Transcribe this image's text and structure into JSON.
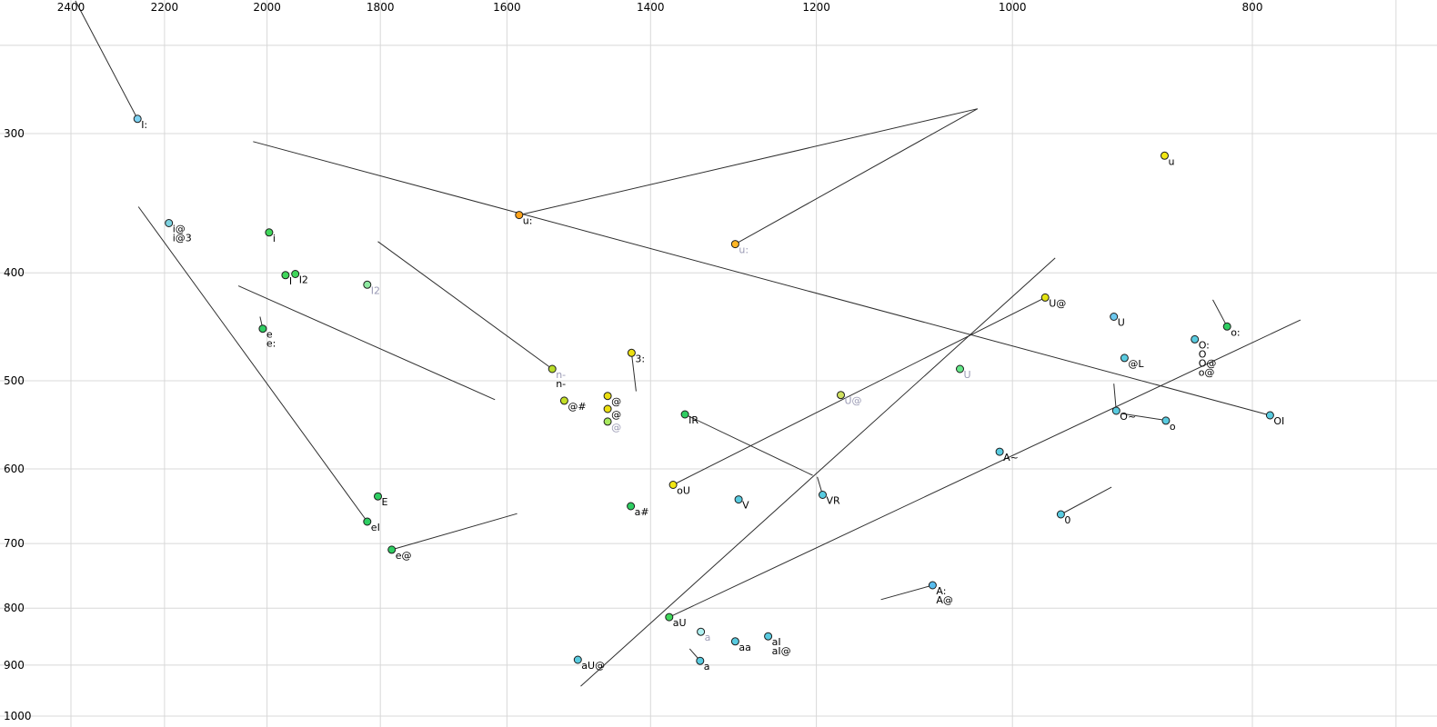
{
  "chart_data": {
    "type": "scatter",
    "title": "",
    "x_axis": {
      "scale": "log",
      "reversed": true,
      "ticks": [
        2400,
        2200,
        2000,
        1800,
        1600,
        1400,
        1200,
        1000,
        800
      ],
      "grid_extra": [
        700
      ],
      "range": [
        2560,
        680
      ]
    },
    "y_axis": {
      "scale": "log",
      "ticks": [
        300,
        400,
        500,
        600,
        700,
        800,
        900,
        1000
      ],
      "grid_extra": [
        250
      ],
      "range": [
        226,
        1015
      ]
    },
    "colors": {
      "grid": "#d8d8d8",
      "line": "#2e2e2e",
      "point_stroke": "#1c1c1c",
      "tick_label": "#000000",
      "muted_label": "#9a9ab4"
    },
    "points": [
      {
        "f2": 2256,
        "f1": 291,
        "fill": "#7ed2f2",
        "labels": [
          {
            "t": "I:"
          }
        ]
      },
      {
        "f2": 2191,
        "f1": 361,
        "fill": "#7ed2e0",
        "labels": [
          {
            "t": "i@"
          },
          {
            "t": "i@3"
          }
        ]
      },
      {
        "f2": 1996,
        "f1": 368,
        "fill": "#3fd65a",
        "labels": [
          {
            "t": "i"
          }
        ]
      },
      {
        "f2": 1966,
        "f1": 402,
        "fill": "#3fd65a",
        "labels": [
          {
            "t": "I"
          }
        ]
      },
      {
        "f2": 1948,
        "f1": 401,
        "fill": "#3fd65a",
        "labels": [
          {
            "t": "I2"
          }
        ]
      },
      {
        "f2": 1822,
        "f1": 410,
        "fill": "#8ee8a0",
        "labels": [
          {
            "t": "I2",
            "muted": true
          }
        ]
      },
      {
        "f2": 2008,
        "f1": 449,
        "fill": "#2fce62",
        "labels": [
          {
            "t": "e"
          },
          {
            "t": "e:"
          }
        ]
      },
      {
        "f2": 1582,
        "f1": 355,
        "fill": "#ffa31a",
        "labels": [
          {
            "t": "u:"
          }
        ]
      },
      {
        "f2": 1294,
        "f1": 377,
        "fill": "#ffb626",
        "labels": [
          {
            "t": "u:",
            "muted": true
          }
        ]
      },
      {
        "f2": 868,
        "f1": 314,
        "fill": "#f2e713",
        "labels": [
          {
            "t": "u"
          }
        ]
      },
      {
        "f2": 970,
        "f1": 421,
        "fill": "#e3e312",
        "labels": [
          {
            "t": "U@"
          }
        ]
      },
      {
        "f2": 910,
        "f1": 438,
        "fill": "#6cc8ee",
        "labels": [
          {
            "t": "U"
          }
        ]
      },
      {
        "f2": 1050,
        "f1": 488,
        "fill": "#63e887",
        "labels": [
          {
            "t": "U",
            "muted": true
          }
        ]
      },
      {
        "f2": 1173,
        "f1": 515,
        "fill": "#cfe060",
        "labels": [
          {
            "t": "U@",
            "muted": true
          }
        ]
      },
      {
        "f2": 819,
        "f1": 447,
        "fill": "#2fce62",
        "labels": [
          {
            "t": "o:"
          }
        ]
      },
      {
        "f2": 844,
        "f1": 459,
        "fill": "#59cbe0",
        "labels": [
          {
            "t": "O:"
          },
          {
            "t": "O"
          },
          {
            "t": "O@"
          },
          {
            "t": "o@"
          }
        ]
      },
      {
        "f2": 901,
        "f1": 477,
        "fill": "#59cbe0",
        "labels": [
          {
            "t": "@L"
          }
        ]
      },
      {
        "f2": 908,
        "f1": 532,
        "fill": "#59cbe0",
        "labels": [
          {
            "t": "O~"
          }
        ]
      },
      {
        "f2": 867,
        "f1": 543,
        "fill": "#59cbe0",
        "labels": [
          {
            "t": "o"
          }
        ]
      },
      {
        "f2": 787,
        "f1": 537,
        "fill": "#59cbe0",
        "labels": [
          {
            "t": "OI"
          }
        ]
      },
      {
        "f2": 1012,
        "f1": 579,
        "fill": "#59cbe0",
        "labels": [
          {
            "t": "A~"
          }
        ]
      },
      {
        "f2": 956,
        "f1": 659,
        "fill": "#59cbe0",
        "labels": [
          {
            "t": "0"
          }
        ]
      },
      {
        "f2": 1077,
        "f1": 763,
        "fill": "#59bdee",
        "labels": [
          {
            "t": "A:"
          },
          {
            "t": "A@"
          }
        ]
      },
      {
        "f2": 1193,
        "f1": 633,
        "fill": "#59cbe0",
        "labels": [
          {
            "t": "VR"
          }
        ]
      },
      {
        "f2": 1290,
        "f1": 639,
        "fill": "#59cbe0",
        "labels": [
          {
            "t": "V"
          }
        ]
      },
      {
        "f2": 1371,
        "f1": 620,
        "fill": "#f2e713",
        "labels": [
          {
            "t": "oU"
          }
        ]
      },
      {
        "f2": 1356,
        "f1": 536,
        "fill": "#2fce62",
        "labels": [
          {
            "t": "IR"
          }
        ]
      },
      {
        "f2": 1425,
        "f1": 472,
        "fill": "#ecdf10",
        "labels": [
          {
            "t": "3:"
          }
        ]
      },
      {
        "f2": 1534,
        "f1": 488,
        "fill": "#b8dc28",
        "labels": [
          {
            "t": "n-",
            "muted": true
          },
          {
            "t": "n-"
          }
        ]
      },
      {
        "f2": 1517,
        "f1": 521,
        "fill": "#c3de25",
        "labels": [
          {
            "t": "@#"
          }
        ]
      },
      {
        "f2": 1457,
        "f1": 516,
        "fill": "#ecdf10",
        "labels": [
          {
            "t": "@"
          }
        ]
      },
      {
        "f2": 1457,
        "f1": 530,
        "fill": "#ecdf10",
        "labels": [
          {
            "t": "@"
          }
        ]
      },
      {
        "f2": 1457,
        "f1": 544,
        "fill": "#a8e95e",
        "labels": [
          {
            "t": "@",
            "muted": true
          }
        ]
      },
      {
        "f2": 1804,
        "f1": 635,
        "fill": "#2fce62",
        "labels": [
          {
            "t": "E"
          }
        ]
      },
      {
        "f2": 1822,
        "f1": 669,
        "fill": "#2fce62",
        "labels": [
          {
            "t": "eI"
          }
        ]
      },
      {
        "f2": 1781,
        "f1": 709,
        "fill": "#2fce62",
        "labels": [
          {
            "t": "e@"
          }
        ]
      },
      {
        "f2": 1426,
        "f1": 648,
        "fill": "#2fce62",
        "labels": [
          {
            "t": "a#"
          }
        ]
      },
      {
        "f2": 1376,
        "f1": 815,
        "fill": "#3fd65a",
        "labels": [
          {
            "t": "aU"
          }
        ]
      },
      {
        "f2": 1498,
        "f1": 890,
        "fill": "#59cbe0",
        "labels": [
          {
            "t": "aU@"
          }
        ]
      },
      {
        "f2": 1336,
        "f1": 840,
        "fill": "#aef0f0",
        "labels": [
          {
            "t": "a",
            "muted": true
          }
        ]
      },
      {
        "f2": 1294,
        "f1": 857,
        "fill": "#59cbe0",
        "labels": [
          {
            "t": "aa"
          }
        ]
      },
      {
        "f2": 1255,
        "f1": 848,
        "fill": "#59cbe0",
        "labels": [
          {
            "t": "aI"
          },
          {
            "t": "aI@"
          }
        ]
      },
      {
        "f2": 1337,
        "f1": 892,
        "fill": "#59cbe0",
        "labels": [
          {
            "t": "a"
          }
        ]
      }
    ],
    "segments": [
      [
        2390,
        228,
        2256,
        291
      ],
      [
        2026,
        305,
        787,
        537
      ],
      [
        1582,
        355,
        1033,
        285
      ],
      [
        1033,
        285,
        1294,
        377
      ],
      [
        2254,
        349,
        1822,
        669
      ],
      [
        2054,
        411,
        1618,
        520
      ],
      [
        1804,
        375,
        1534,
        488
      ],
      [
        2013,
        438,
        2008,
        449
      ],
      [
        1425,
        472,
        1419,
        511
      ],
      [
        1781,
        709,
        1585,
        658
      ],
      [
        1356,
        536,
        1204,
        608
      ],
      [
        1371,
        620,
        970,
        421
      ],
      [
        1494,
        940,
        961,
        388
      ],
      [
        956,
        659,
        912,
        623
      ],
      [
        1130,
        786,
        1077,
        763
      ],
      [
        910,
        503,
        908,
        532
      ],
      [
        904,
        535,
        870,
        542
      ],
      [
        830,
        423,
        819,
        447
      ],
      [
        1199,
        610,
        1193,
        633
      ],
      [
        1350,
        870,
        1337,
        892
      ],
      [
        1376,
        815,
        765,
        441
      ]
    ]
  }
}
